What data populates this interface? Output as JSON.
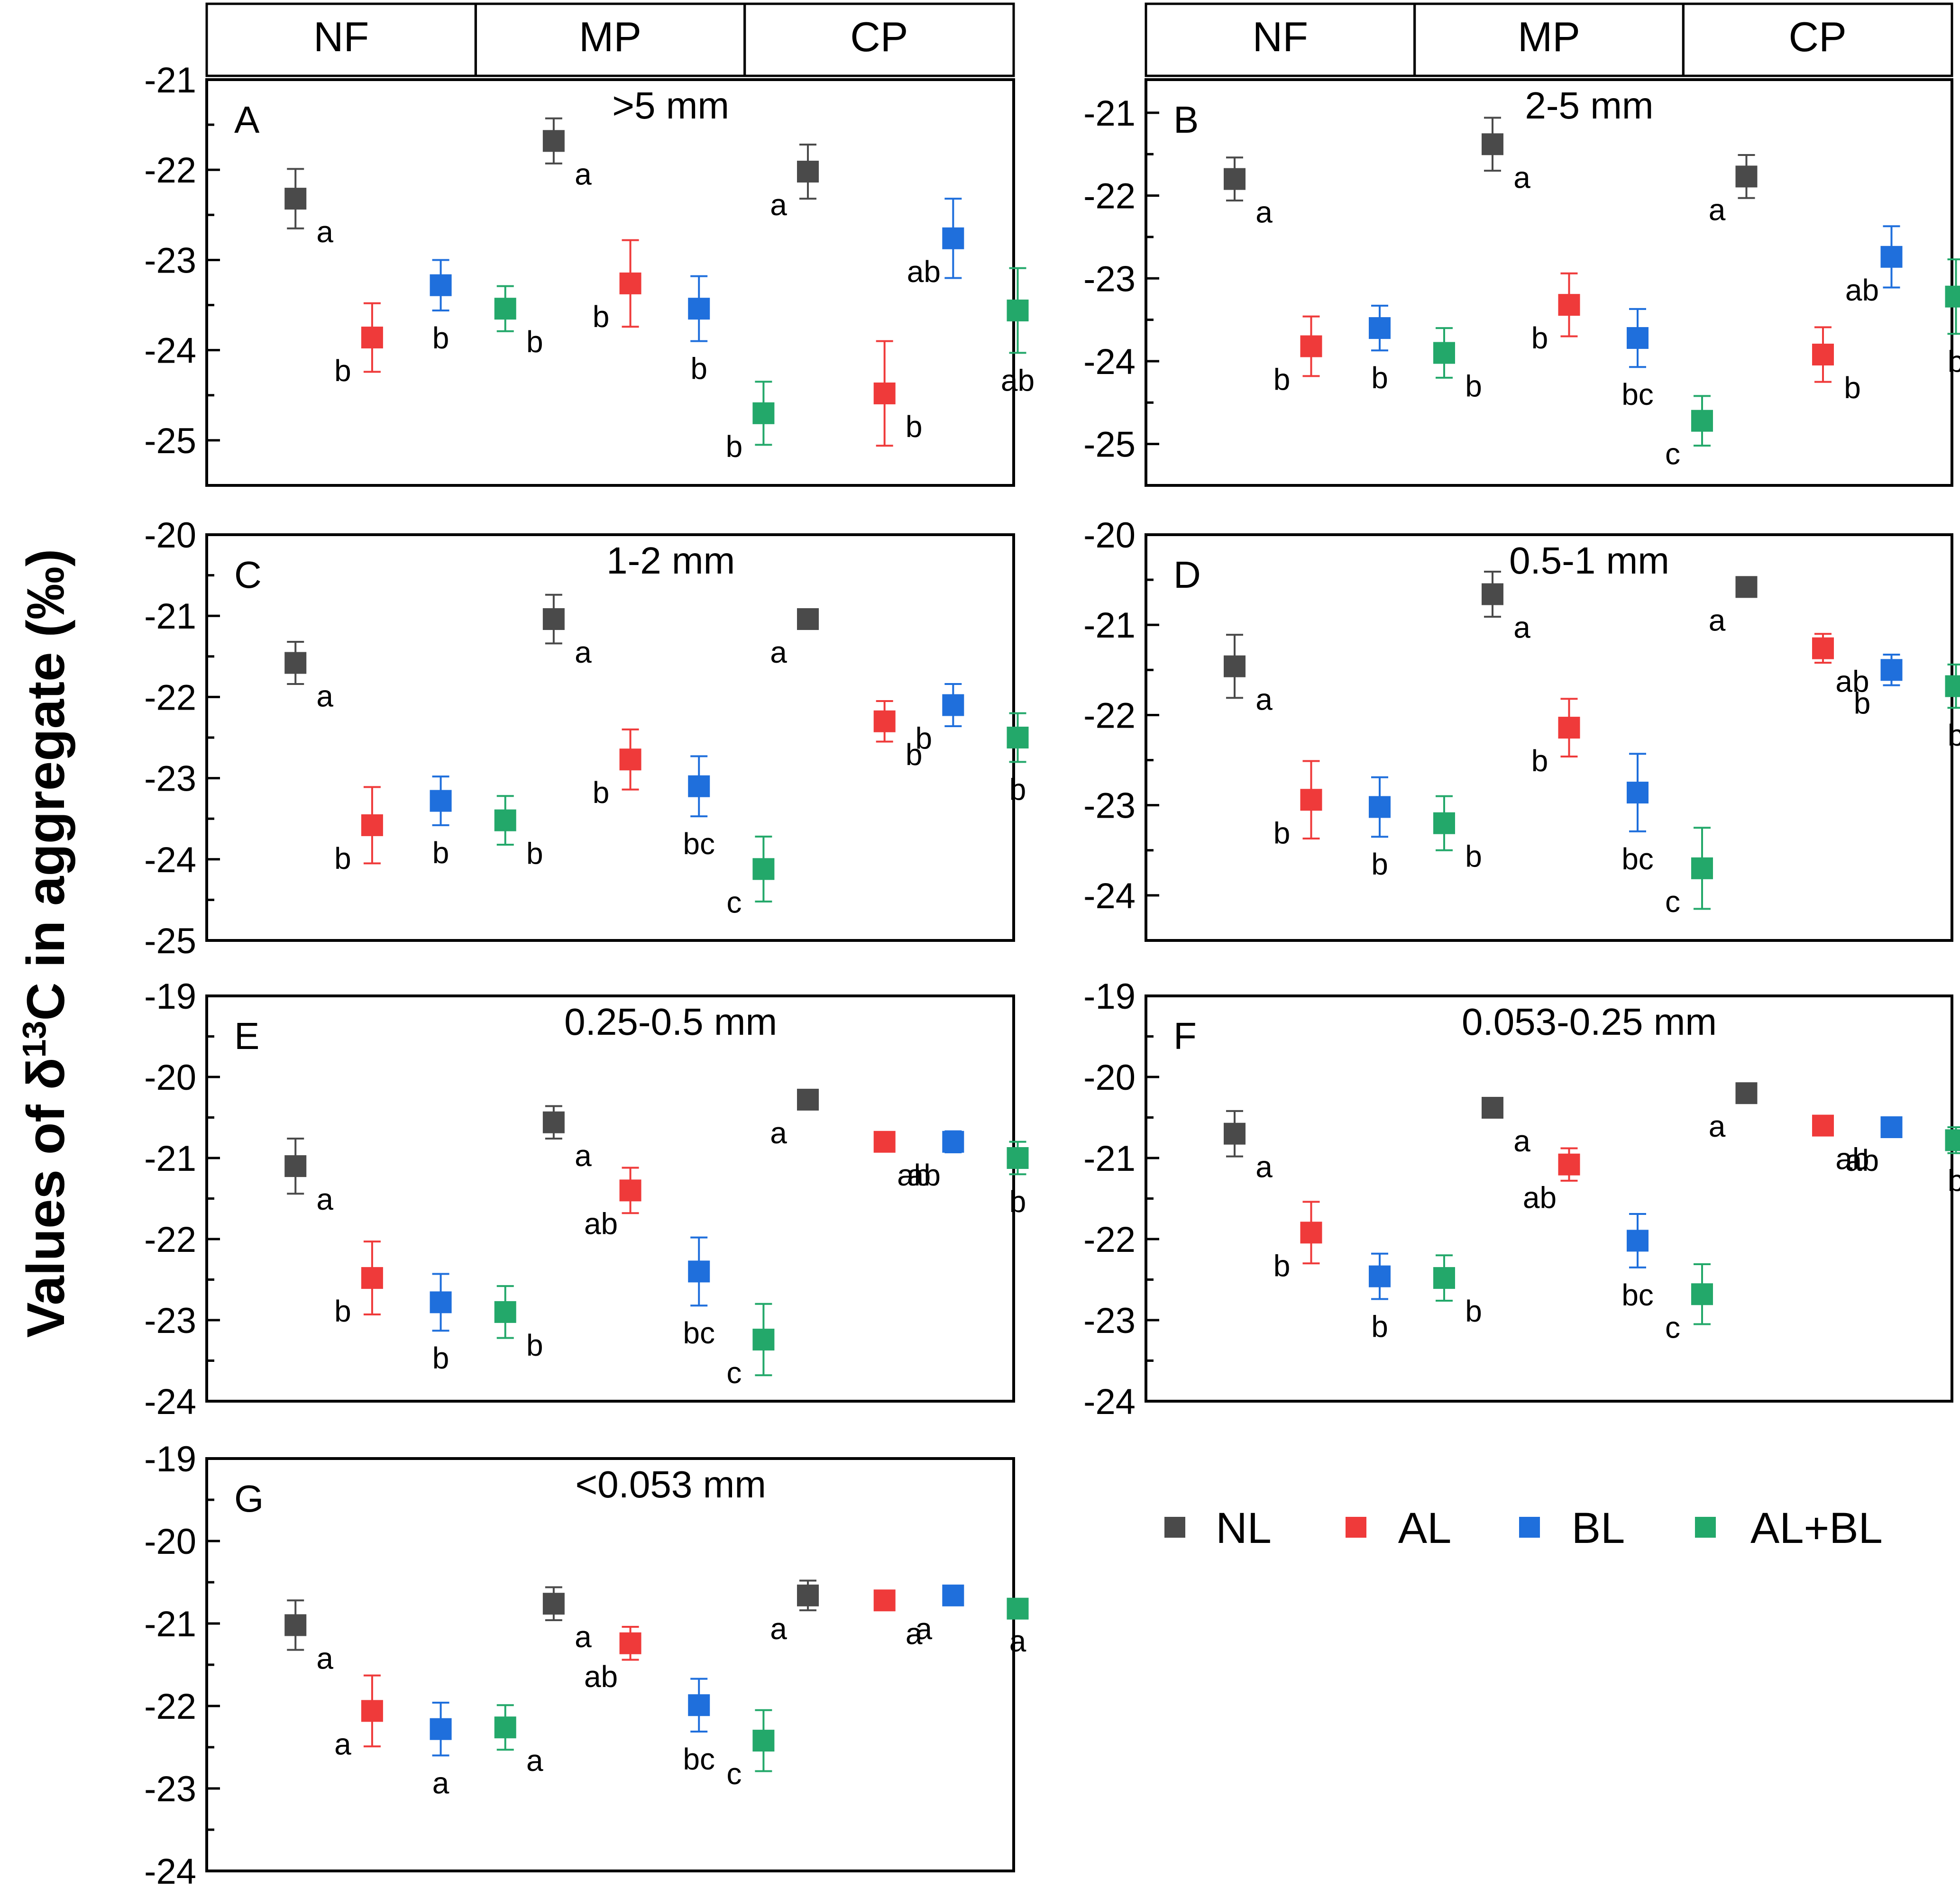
{
  "chart_data": {
    "type": "scatter",
    "ylabel": "Values of δ13C in aggregate (‰)",
    "ylabel_parts": {
      "prefix": "Values of δ",
      "sup": "13",
      "suffix": "C in aggregate (‰)"
    },
    "groups": [
      "NF",
      "MP",
      "CP"
    ],
    "series": [
      {
        "name": "NL",
        "color": "#4a4a4a"
      },
      {
        "name": "AL",
        "color": "#ef3a3a"
      },
      {
        "name": "BL",
        "color": "#1f6fdc"
      },
      {
        "name": "AL+BL",
        "color": "#23a86a"
      }
    ],
    "panels": [
      {
        "letter": "A",
        "title": ">5 mm",
        "ylim": [
          -25.5,
          -21
        ],
        "ticks": [
          -25,
          -24,
          -23,
          -22,
          -21
        ],
        "header": true,
        "groups": [
          {
            "name": "NF",
            "points": [
              {
                "series": "NL",
                "y": -22.32,
                "err": 0.33,
                "label": "a"
              },
              {
                "series": "AL",
                "y": -23.86,
                "err": 0.38,
                "label": "b"
              },
              {
                "series": "BL",
                "y": -23.28,
                "err": 0.28,
                "label": "b"
              },
              {
                "series": "AL+BL",
                "y": -23.54,
                "err": 0.25,
                "label": "b"
              }
            ]
          },
          {
            "name": "MP",
            "points": [
              {
                "series": "NL",
                "y": -21.68,
                "err": 0.25,
                "label": "a"
              },
              {
                "series": "AL",
                "y": -23.26,
                "err": 0.48,
                "label": "b"
              },
              {
                "series": "BL",
                "y": -23.54,
                "err": 0.36,
                "label": "b"
              },
              {
                "series": "AL+BL",
                "y": -24.7,
                "err": 0.35,
                "label": "b"
              }
            ]
          },
          {
            "name": "CP",
            "points": [
              {
                "series": "NL",
                "y": -22.02,
                "err": 0.3,
                "label": "a"
              },
              {
                "series": "AL",
                "y": -24.48,
                "err": 0.58,
                "label": "b"
              },
              {
                "series": "BL",
                "y": -22.76,
                "err": 0.44,
                "label": "ab"
              },
              {
                "series": "AL+BL",
                "y": -23.56,
                "err": 0.47,
                "label": "ab"
              }
            ]
          }
        ]
      },
      {
        "letter": "B",
        "title": "2-5 mm",
        "ylim": [
          -25.5,
          -20.6
        ],
        "ticks": [
          -25,
          -24,
          -23,
          -22,
          -21
        ],
        "header": true,
        "groups": [
          {
            "name": "NF",
            "points": [
              {
                "series": "NL",
                "y": -21.8,
                "err": 0.26,
                "label": "a"
              },
              {
                "series": "AL",
                "y": -23.82,
                "err": 0.36,
                "label": "b"
              },
              {
                "series": "BL",
                "y": -23.6,
                "err": 0.27,
                "label": "b"
              },
              {
                "series": "AL+BL",
                "y": -23.9,
                "err": 0.3,
                "label": "b"
              }
            ]
          },
          {
            "name": "MP",
            "points": [
              {
                "series": "NL",
                "y": -21.38,
                "err": 0.32,
                "label": "a"
              },
              {
                "series": "AL",
                "y": -23.32,
                "err": 0.38,
                "label": "b"
              },
              {
                "series": "BL",
                "y": -23.72,
                "err": 0.35,
                "label": "bc"
              },
              {
                "series": "AL+BL",
                "y": -24.72,
                "err": 0.3,
                "label": "c"
              }
            ]
          },
          {
            "name": "CP",
            "points": [
              {
                "series": "NL",
                "y": -21.77,
                "err": 0.26,
                "label": "a"
              },
              {
                "series": "AL",
                "y": -23.92,
                "err": 0.33,
                "label": "b"
              },
              {
                "series": "BL",
                "y": -22.74,
                "err": 0.37,
                "label": "ab"
              },
              {
                "series": "AL+BL",
                "y": -23.22,
                "err": 0.45,
                "label": "b"
              }
            ]
          }
        ]
      },
      {
        "letter": "C",
        "title": "1-2 mm",
        "ylim": [
          -25,
          -20
        ],
        "ticks": [
          -25,
          -24,
          -23,
          -22,
          -21,
          -20
        ],
        "header": false,
        "groups": [
          {
            "name": "NF",
            "points": [
              {
                "series": "NL",
                "y": -21.58,
                "err": 0.26,
                "label": "a"
              },
              {
                "series": "AL",
                "y": -23.58,
                "err": 0.47,
                "label": "b"
              },
              {
                "series": "BL",
                "y": -23.28,
                "err": 0.3,
                "label": "b"
              },
              {
                "series": "AL+BL",
                "y": -23.52,
                "err": 0.3,
                "label": "b"
              }
            ]
          },
          {
            "name": "MP",
            "points": [
              {
                "series": "NL",
                "y": -21.04,
                "err": 0.3,
                "label": "a"
              },
              {
                "series": "AL",
                "y": -22.77,
                "err": 0.37,
                "label": "b"
              },
              {
                "series": "BL",
                "y": -23.1,
                "err": 0.37,
                "label": "bc"
              },
              {
                "series": "AL+BL",
                "y": -24.12,
                "err": 0.4,
                "label": "c"
              }
            ]
          },
          {
            "name": "CP",
            "points": [
              {
                "series": "NL",
                "y": -21.04,
                "err": 0.12,
                "label": "a"
              },
              {
                "series": "AL",
                "y": -22.3,
                "err": 0.25,
                "label": "b"
              },
              {
                "series": "BL",
                "y": -22.1,
                "err": 0.26,
                "label": "b"
              },
              {
                "series": "AL+BL",
                "y": -22.5,
                "err": 0.3,
                "label": "b"
              }
            ]
          }
        ]
      },
      {
        "letter": "D",
        "title": "0.5-1 mm",
        "ylim": [
          -24.5,
          -20
        ],
        "ticks": [
          -24,
          -23,
          -22,
          -21,
          -20
        ],
        "header": false,
        "groups": [
          {
            "name": "NF",
            "points": [
              {
                "series": "NL",
                "y": -21.46,
                "err": 0.35,
                "label": "a"
              },
              {
                "series": "AL",
                "y": -22.94,
                "err": 0.43,
                "label": "b"
              },
              {
                "series": "BL",
                "y": -23.02,
                "err": 0.33,
                "label": "b"
              },
              {
                "series": "AL+BL",
                "y": -23.2,
                "err": 0.3,
                "label": "b"
              }
            ]
          },
          {
            "name": "MP",
            "points": [
              {
                "series": "NL",
                "y": -20.66,
                "err": 0.25,
                "label": "a"
              },
              {
                "series": "AL",
                "y": -22.14,
                "err": 0.32,
                "label": "b"
              },
              {
                "series": "BL",
                "y": -22.86,
                "err": 0.43,
                "label": "bc"
              },
              {
                "series": "AL+BL",
                "y": -23.7,
                "err": 0.45,
                "label": "c"
              }
            ]
          },
          {
            "name": "CP",
            "points": [
              {
                "series": "NL",
                "y": -20.58,
                "err": 0.09,
                "label": "a"
              },
              {
                "series": "AL",
                "y": -21.26,
                "err": 0.16,
                "label": "ab"
              },
              {
                "series": "BL",
                "y": -21.5,
                "err": 0.17,
                "label": "b"
              },
              {
                "series": "AL+BL",
                "y": -21.68,
                "err": 0.24,
                "label": "b"
              }
            ]
          }
        ]
      },
      {
        "letter": "E",
        "title": "0.25-0.5 mm",
        "ylim": [
          -24,
          -19
        ],
        "ticks": [
          -24,
          -23,
          -22,
          -21,
          -20,
          -19
        ],
        "header": false,
        "groups": [
          {
            "name": "NF",
            "points": [
              {
                "series": "NL",
                "y": -21.1,
                "err": 0.34,
                "label": "a"
              },
              {
                "series": "AL",
                "y": -22.48,
                "err": 0.45,
                "label": "b"
              },
              {
                "series": "BL",
                "y": -22.78,
                "err": 0.35,
                "label": "b"
              },
              {
                "series": "AL+BL",
                "y": -22.9,
                "err": 0.32,
                "label": "b"
              }
            ]
          },
          {
            "name": "MP",
            "points": [
              {
                "series": "NL",
                "y": -20.56,
                "err": 0.2,
                "label": "a"
              },
              {
                "series": "AL",
                "y": -21.4,
                "err": 0.28,
                "label": "ab"
              },
              {
                "series": "BL",
                "y": -22.4,
                "err": 0.42,
                "label": "bc"
              },
              {
                "series": "AL+BL",
                "y": -23.24,
                "err": 0.44,
                "label": "c"
              }
            ]
          },
          {
            "name": "CP",
            "points": [
              {
                "series": "NL",
                "y": -20.28,
                "err": 0.07,
                "label": "a"
              },
              {
                "series": "AL",
                "y": -20.8,
                "err": 0.08,
                "label": "ab"
              },
              {
                "series": "BL",
                "y": -20.8,
                "err": 0.13,
                "label": "ab"
              },
              {
                "series": "AL+BL",
                "y": -21.0,
                "err": 0.2,
                "label": "b"
              }
            ]
          }
        ]
      },
      {
        "letter": "F",
        "title": "0.053-0.25 mm",
        "ylim": [
          -24,
          -19
        ],
        "ticks": [
          -24,
          -23,
          -22,
          -21,
          -20,
          -19
        ],
        "header": false,
        "groups": [
          {
            "name": "NF",
            "points": [
              {
                "series": "NL",
                "y": -20.7,
                "err": 0.28,
                "label": "a"
              },
              {
                "series": "AL",
                "y": -21.92,
                "err": 0.38,
                "label": "b"
              },
              {
                "series": "BL",
                "y": -22.46,
                "err": 0.28,
                "label": "b"
              },
              {
                "series": "AL+BL",
                "y": -22.48,
                "err": 0.28,
                "label": "b"
              }
            ]
          },
          {
            "name": "MP",
            "points": [
              {
                "series": "NL",
                "y": -20.38,
                "err": 0.12,
                "label": "a"
              },
              {
                "series": "AL",
                "y": -21.08,
                "err": 0.2,
                "label": "ab"
              },
              {
                "series": "BL",
                "y": -22.02,
                "err": 0.33,
                "label": "bc"
              },
              {
                "series": "AL+BL",
                "y": -22.68,
                "err": 0.37,
                "label": "c"
              }
            ]
          },
          {
            "name": "CP",
            "points": [
              {
                "series": "NL",
                "y": -20.2,
                "err": 0.06,
                "label": "a"
              },
              {
                "series": "AL",
                "y": -20.6,
                "err": 0.07,
                "label": "ab"
              },
              {
                "series": "BL",
                "y": -20.62,
                "err": 0.12,
                "label": "ab"
              },
              {
                "series": "AL+BL",
                "y": -20.78,
                "err": 0.16,
                "label": "b"
              }
            ]
          }
        ]
      },
      {
        "letter": "G",
        "title": "<0.053 mm",
        "ylim": [
          -24,
          -19
        ],
        "ticks": [
          -24,
          -23,
          -22,
          -21,
          -20,
          -19
        ],
        "header": false,
        "groups": [
          {
            "name": "NF",
            "points": [
              {
                "series": "NL",
                "y": -21.02,
                "err": 0.3,
                "label": "a"
              },
              {
                "series": "AL",
                "y": -22.06,
                "err": 0.43,
                "label": "a"
              },
              {
                "series": "BL",
                "y": -22.28,
                "err": 0.32,
                "label": "a"
              },
              {
                "series": "AL+BL",
                "y": -22.26,
                "err": 0.27,
                "label": "a"
              }
            ]
          },
          {
            "name": "MP",
            "points": [
              {
                "series": "NL",
                "y": -20.76,
                "err": 0.2,
                "label": "a"
              },
              {
                "series": "AL",
                "y": -21.24,
                "err": 0.2,
                "label": "ab"
              },
              {
                "series": "BL",
                "y": -21.99,
                "err": 0.32,
                "label": "bc"
              },
              {
                "series": "AL+BL",
                "y": -22.42,
                "err": 0.37,
                "label": "c"
              }
            ]
          },
          {
            "name": "CP",
            "points": [
              {
                "series": "NL",
                "y": -20.66,
                "err": 0.18,
                "label": "a"
              },
              {
                "series": "AL",
                "y": -20.72,
                "err": 0.07,
                "label": "a"
              },
              {
                "series": "BL",
                "y": -20.66,
                "err": 0.05,
                "label": "a"
              },
              {
                "series": "AL+BL",
                "y": -20.82,
                "err": 0.06,
                "label": "a"
              }
            ]
          }
        ]
      }
    ]
  }
}
